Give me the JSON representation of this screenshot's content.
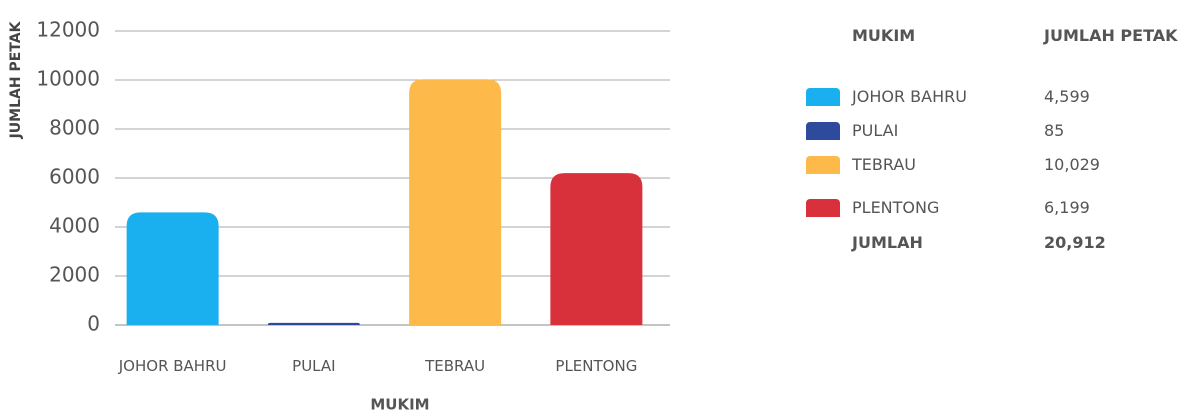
{
  "chart_data": {
    "type": "bar",
    "x_label": "MUKIM",
    "y_label": "JUMLAH PETAK",
    "categories": [
      "JOHOR BAHRU",
      "PULAI",
      "TEBRAU",
      "PLENTONG"
    ],
    "values": [
      4599,
      85,
      10029,
      6199
    ],
    "value_labels": [
      "4,599",
      "85",
      "10,029",
      "6,199"
    ],
    "colors": [
      "#1ab0ef",
      "#2e4a9c",
      "#fdb94a",
      "#d9313c"
    ],
    "ylim": [
      0,
      12000
    ],
    "yticks": [
      0,
      2000,
      4000,
      6000,
      8000,
      10000,
      12000
    ],
    "grid": true,
    "table": {
      "headers": [
        "MUKIM",
        "JUMLAH PETAK"
      ],
      "total_label": "JUMLAH",
      "total": "20,912"
    }
  }
}
